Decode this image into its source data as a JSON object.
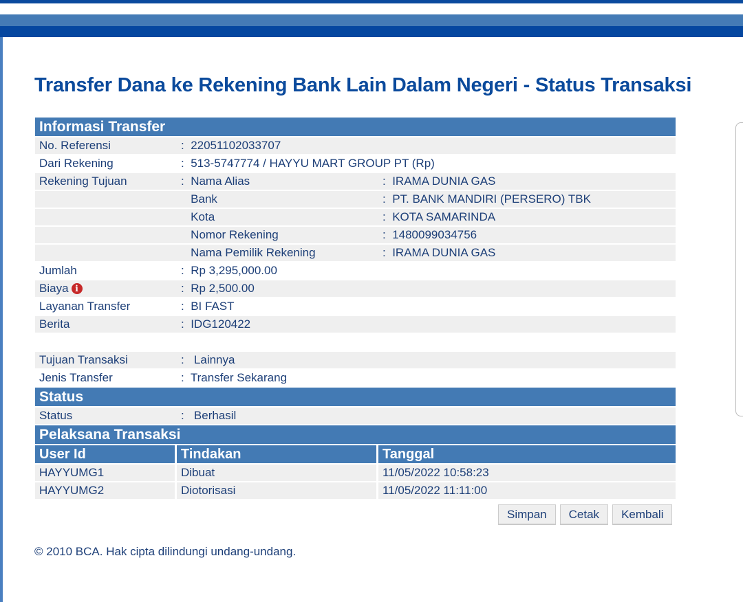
{
  "title": "Transfer Dana ke Rekening Bank Lain Dalam Negeri - Status Transaksi",
  "info_section": "Informasi Transfer",
  "rows": {
    "ref": {
      "label": "No. Referensi",
      "value": "22051102033707"
    },
    "from": {
      "label": "Dari Rekening",
      "value": "513-5747774 / HAYYU MART GROUP PT  (Rp)"
    },
    "to_label": "Rekening Tujuan",
    "to": [
      {
        "label": "Nama Alias",
        "value": "IRAMA DUNIA GAS"
      },
      {
        "label": "Bank",
        "value": "PT. BANK MANDIRI (PERSERO) TBK"
      },
      {
        "label": "Kota",
        "value": "KOTA SAMARINDA"
      },
      {
        "label": "Nomor Rekening",
        "value": "1480099034756"
      },
      {
        "label": "Nama Pemilik Rekening",
        "value": "IRAMA DUNIA GAS"
      }
    ],
    "amount": {
      "label": "Jumlah",
      "value": "Rp 3,295,000.00"
    },
    "fee": {
      "label": "Biaya",
      "value": "Rp 2,500.00"
    },
    "service": {
      "label": "Layanan Transfer",
      "value": "BI FAST"
    },
    "message": {
      "label": "Berita",
      "value": "IDG120422"
    },
    "purpose": {
      "label": "Tujuan Transaksi",
      "value": "Lainnya"
    },
    "type": {
      "label": "Jenis Transfer",
      "value": "Transfer Sekarang"
    }
  },
  "status_section": "Status",
  "status": {
    "label": "Status",
    "value": "Berhasil"
  },
  "exec_section": "Pelaksana Transaksi",
  "exec_headers": [
    "User Id",
    "Tindakan",
    "Tanggal"
  ],
  "exec_rows": [
    [
      "HAYYUMG1",
      "Dibuat",
      "11/05/2022 10:58:23"
    ],
    [
      "HAYYUMG2",
      "Diotorisasi",
      "11/05/2022 11:11:00"
    ]
  ],
  "colon": ":",
  "buttons": {
    "save": "Simpan",
    "print": "Cetak",
    "back": "Kembali"
  },
  "footer": "©  2010 BCA. Hak cipta dilindungi undang-undang.",
  "icons": {
    "fee_info": "info-icon",
    "fee_info_glyph": "i"
  }
}
